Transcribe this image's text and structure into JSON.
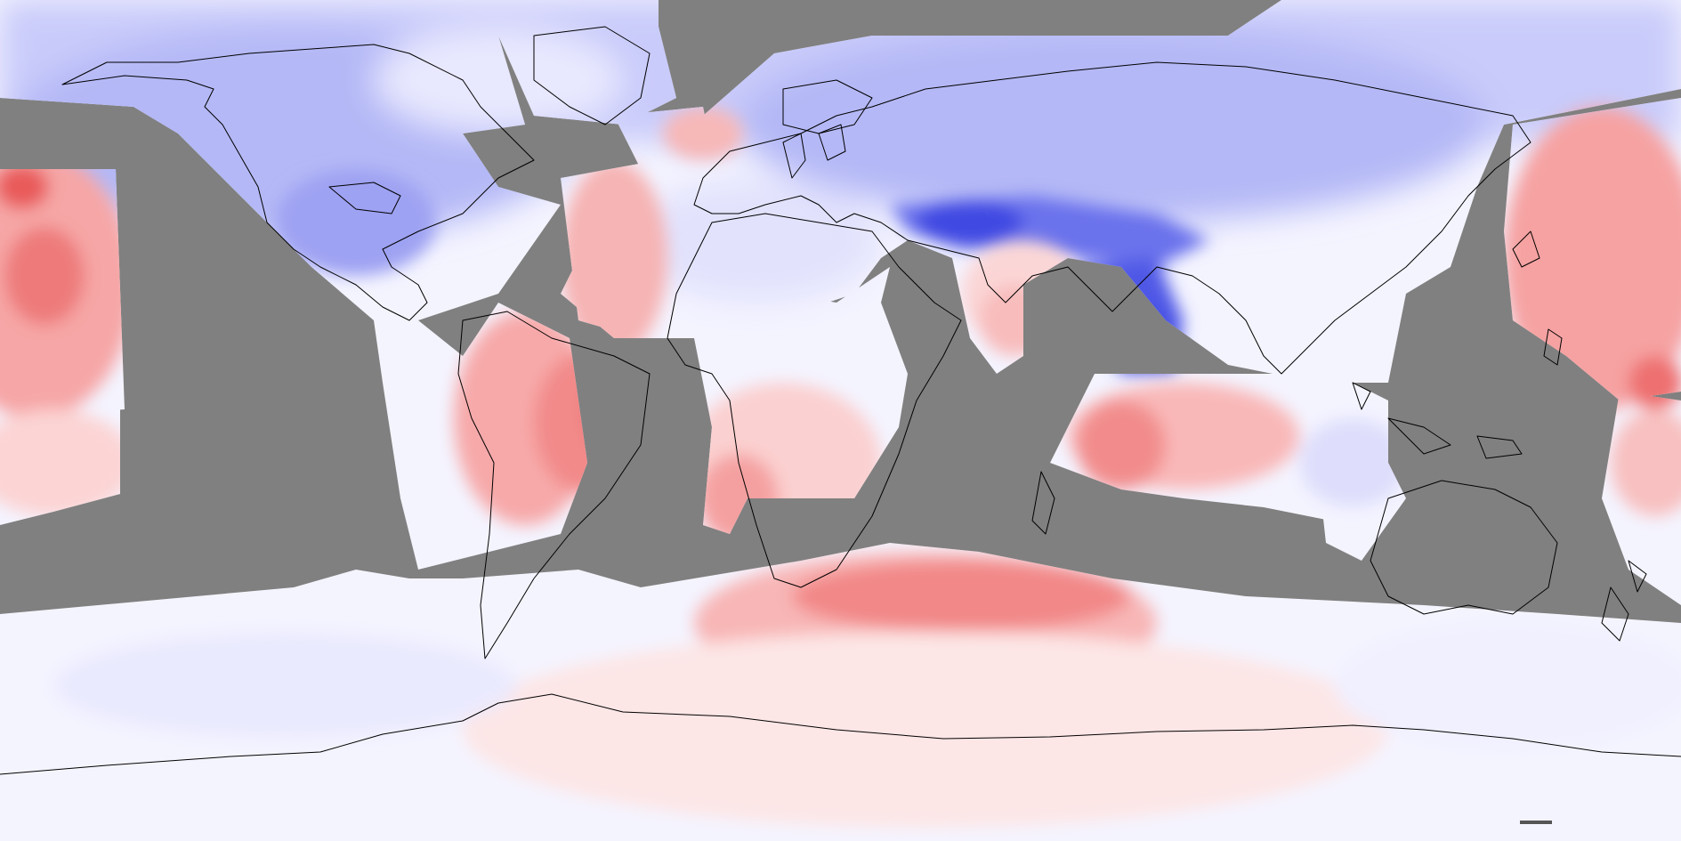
{
  "map": {
    "projection": "equirectangular",
    "extent": {
      "lon": [
        -180,
        180
      ],
      "lat": [
        -90,
        90
      ]
    },
    "colors": {
      "no_data": "#808080",
      "coastline": "#000000",
      "warm_light": "#ffe0e0",
      "warm_mid": "#f8a8a8",
      "warm_strong": "#ef6a6a",
      "neutral": "#f4f4ff",
      "cool_light": "#dcdcfc",
      "cool_mid": "#aeb0f4",
      "cool_strong": "#5058e6"
    }
  }
}
